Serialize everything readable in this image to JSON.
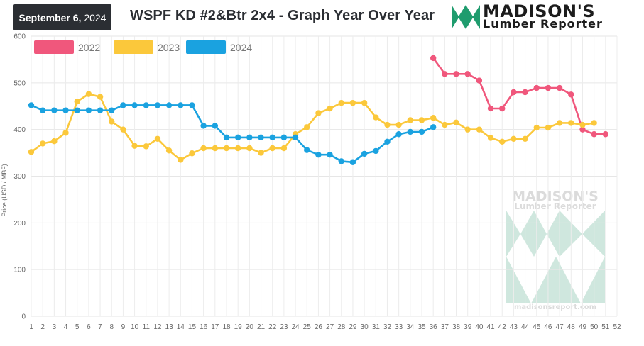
{
  "header": {
    "date": "September 6,",
    "year": "2024",
    "title": "WSPF KD #2&Btr 2x4 - Graph Year Over Year"
  },
  "logo": {
    "line1": "MADISON'S",
    "line2": "Lumber Reporter",
    "colors": {
      "green": "#1f9c6e",
      "dark": "#1c1c1c",
      "red": "#d9362b"
    }
  },
  "watermark": {
    "line1": "MADISON'S",
    "line2": "Lumber Reporter",
    "url": "madisonsreport.com",
    "color": "#9fcfbd"
  },
  "chart_data": {
    "type": "line",
    "ylabel": "Price (USD / MBF)",
    "ylim": [
      0,
      600
    ],
    "yticks": [
      0,
      100,
      200,
      300,
      400,
      500,
      600
    ],
    "x": [
      1,
      2,
      3,
      4,
      5,
      6,
      7,
      8,
      9,
      10,
      11,
      12,
      13,
      14,
      15,
      16,
      17,
      18,
      19,
      20,
      21,
      22,
      23,
      24,
      25,
      26,
      27,
      28,
      29,
      30,
      31,
      32,
      33,
      34,
      35,
      36,
      37,
      38,
      39,
      40,
      41,
      42,
      43,
      44,
      45,
      46,
      47,
      48,
      49,
      50,
      51,
      52
    ],
    "grid": true,
    "legend_position": "top-left",
    "series": [
      {
        "name": "2022",
        "color": "#f0577c",
        "x": [
          36,
          37,
          38,
          39,
          40,
          41,
          42,
          43,
          44,
          45,
          46,
          47,
          48,
          49,
          50,
          51
        ],
        "values": [
          553,
          519,
          519,
          519,
          505,
          445,
          445,
          480,
          480,
          489,
          489,
          489,
          475,
          400,
          390,
          390
        ]
      },
      {
        "name": "2023",
        "color": "#fbc83b",
        "x": [
          1,
          2,
          3,
          4,
          5,
          6,
          7,
          8,
          9,
          10,
          11,
          12,
          13,
          14,
          15,
          16,
          17,
          18,
          19,
          20,
          21,
          22,
          23,
          24,
          25,
          26,
          27,
          28,
          29,
          30,
          31,
          32,
          33,
          34,
          35,
          36,
          37,
          38,
          39,
          40,
          41,
          42,
          43,
          44,
          45,
          46,
          47,
          48,
          49,
          50
        ],
        "values": [
          352,
          370,
          375,
          393,
          460,
          476,
          470,
          417,
          400,
          365,
          364,
          380,
          355,
          335,
          349,
          360,
          360,
          360,
          360,
          360,
          350,
          360,
          360,
          390,
          405,
          435,
          445,
          457,
          457,
          457,
          426,
          410,
          410,
          420,
          420,
          425,
          410,
          415,
          400,
          400,
          382,
          374,
          380,
          380,
          404,
          404,
          414,
          414,
          410,
          414
        ]
      },
      {
        "name": "2024",
        "color": "#1aa2e0",
        "x": [
          1,
          2,
          3,
          4,
          5,
          6,
          7,
          8,
          9,
          10,
          11,
          12,
          13,
          14,
          15,
          16,
          17,
          18,
          19,
          20,
          21,
          22,
          23,
          24,
          25,
          26,
          27,
          28,
          29,
          30,
          31,
          32,
          33,
          34,
          35,
          36
        ],
        "values": [
          452,
          441,
          441,
          441,
          441,
          441,
          441,
          441,
          452,
          452,
          452,
          452,
          452,
          452,
          452,
          408,
          408,
          383,
          383,
          383,
          383,
          383,
          383,
          383,
          356,
          346,
          346,
          332,
          330,
          348,
          354,
          374,
          390,
          395,
          395,
          405
        ]
      }
    ]
  }
}
